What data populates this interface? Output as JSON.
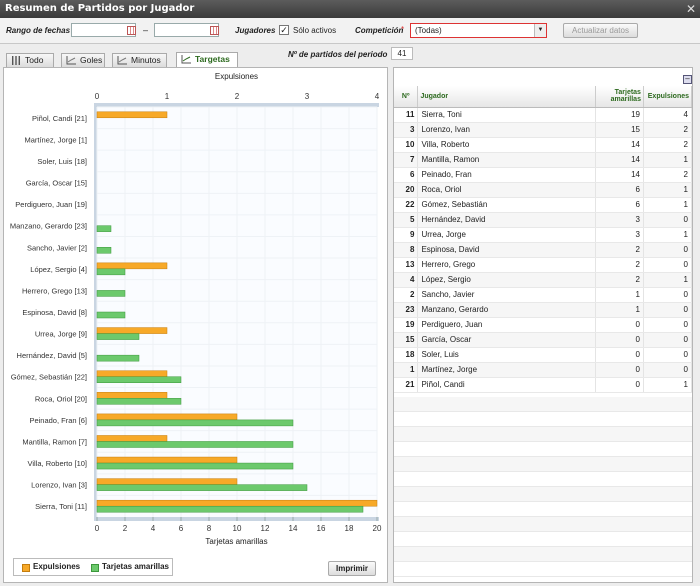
{
  "window": {
    "title": "Resumen de Partidos por Jugador"
  },
  "filters": {
    "date_range_label": "Rango de fechas",
    "date_separator": "–",
    "date_from": "",
    "date_to": "",
    "players_label": "Jugadores",
    "active_only_label": "Sólo activos",
    "active_only_checked": true,
    "competition_label": "Competición",
    "competition_value": "(Todas)",
    "refresh_button": "Actualizar datos",
    "matches_label": "Nº de partidos del periodo",
    "matches_value": "41"
  },
  "tabs": [
    {
      "label": "Todo",
      "icon": "list-icon",
      "active": false
    },
    {
      "label": "Goles",
      "icon": "chart-icon",
      "active": false
    },
    {
      "label": "Minutos",
      "icon": "chart-icon",
      "active": false
    },
    {
      "label": "Targetas",
      "icon": "chart-icon",
      "active": true
    }
  ],
  "chart_data": {
    "type": "bar",
    "orientation": "horizontal",
    "categories": [
      "Piñol, Candi [21]",
      "Martínez, Jorge [1]",
      "Soler, Luis [18]",
      "García, Oscar [15]",
      "Perdiguero, Juan [19]",
      "Manzano, Gerardo [23]",
      "Sancho, Javier [2]",
      "López, Sergio [4]",
      "Herrero, Grego [13]",
      "Espinosa, David [8]",
      "Urrea, Jorge [9]",
      "Hernández, David [5]",
      "Gómez, Sebastián [22]",
      "Roca, Oriol [20]",
      "Peinado, Fran [6]",
      "Mantilla, Ramon [7]",
      "Villa, Roberto [10]",
      "Lorenzo, Ivan [3]",
      "Sierra, Toni [11]"
    ],
    "series": [
      {
        "name": "Expulsiones",
        "axis": "top",
        "color": "#f7a928",
        "values": [
          1,
          0,
          0,
          0,
          0,
          0,
          0,
          1,
          0,
          0,
          1,
          0,
          1,
          1,
          2,
          1,
          2,
          2,
          4
        ]
      },
      {
        "name": "Tarjetas amarillas",
        "axis": "bottom",
        "color": "#6cc96c",
        "values": [
          0,
          0,
          0,
          0,
          0,
          1,
          1,
          2,
          2,
          2,
          3,
          3,
          6,
          6,
          14,
          14,
          14,
          15,
          19
        ]
      }
    ],
    "top_axis": {
      "label": "Expulsiones",
      "range": [
        0,
        4
      ],
      "ticks": [
        "0",
        "1",
        "2",
        "3",
        "4"
      ]
    },
    "bottom_axis": {
      "label": "Tarjetas amarillas",
      "range": [
        0,
        20
      ],
      "ticks": [
        "0",
        "2",
        "4",
        "6",
        "8",
        "10",
        "12",
        "14",
        "16",
        "18",
        "20"
      ]
    },
    "legend_position": "bottom-left"
  },
  "print_button": "Imprimir",
  "table": {
    "columns": [
      "Nº",
      "Jugador",
      "Tarjetas amarillas",
      "Expulsiones"
    ],
    "rows": [
      {
        "num": "11",
        "name": "Sierra, Toni",
        "yellow": "19",
        "red": "4"
      },
      {
        "num": "3",
        "name": "Lorenzo, Ivan",
        "yellow": "15",
        "red": "2"
      },
      {
        "num": "10",
        "name": "Villa, Roberto",
        "yellow": "14",
        "red": "2"
      },
      {
        "num": "7",
        "name": "Mantilla, Ramon",
        "yellow": "14",
        "red": "1"
      },
      {
        "num": "6",
        "name": "Peinado, Fran",
        "yellow": "14",
        "red": "2"
      },
      {
        "num": "20",
        "name": "Roca, Oriol",
        "yellow": "6",
        "red": "1"
      },
      {
        "num": "22",
        "name": "Gómez, Sebastián",
        "yellow": "6",
        "red": "1"
      },
      {
        "num": "5",
        "name": "Hernández, David",
        "yellow": "3",
        "red": "0"
      },
      {
        "num": "9",
        "name": "Urrea, Jorge",
        "yellow": "3",
        "red": "1"
      },
      {
        "num": "8",
        "name": "Espinosa, David",
        "yellow": "2",
        "red": "0"
      },
      {
        "num": "13",
        "name": "Herrero, Grego",
        "yellow": "2",
        "red": "0"
      },
      {
        "num": "4",
        "name": "López, Sergio",
        "yellow": "2",
        "red": "1"
      },
      {
        "num": "2",
        "name": "Sancho, Javier",
        "yellow": "1",
        "red": "0"
      },
      {
        "num": "23",
        "name": "Manzano, Gerardo",
        "yellow": "1",
        "red": "0"
      },
      {
        "num": "19",
        "name": "Perdiguero, Juan",
        "yellow": "0",
        "red": "0"
      },
      {
        "num": "15",
        "name": "García, Oscar",
        "yellow": "0",
        "red": "0"
      },
      {
        "num": "18",
        "name": "Soler, Luis",
        "yellow": "0",
        "red": "0"
      },
      {
        "num": "1",
        "name": "Martínez, Jorge",
        "yellow": "0",
        "red": "0"
      },
      {
        "num": "21",
        "name": "Piñol, Candi",
        "yellow": "0",
        "red": "1"
      }
    ]
  }
}
